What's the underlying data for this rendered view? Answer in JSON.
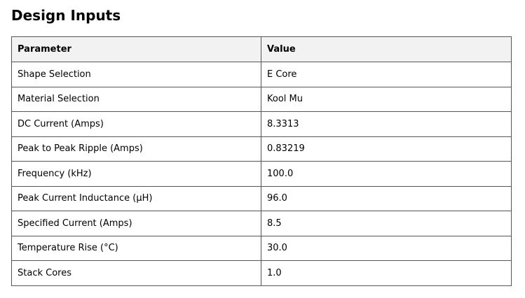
{
  "title": "Design Inputs",
  "table": {
    "headers": [
      "Parameter",
      "Value"
    ],
    "rows": [
      [
        "Shape Selection",
        "E Core"
      ],
      [
        "Material Selection",
        "Kool Mu"
      ],
      [
        "DC Current (Amps)",
        "8.3313"
      ],
      [
        "Peak to Peak Ripple (Amps)",
        "0.83219"
      ],
      [
        "Frequency (kHz)",
        "100.0"
      ],
      [
        "Peak Current Inductance (µH)",
        "96.0"
      ],
      [
        "Specified Current (Amps)",
        "8.5"
      ],
      [
        "Temperature Rise (°C)",
        "30.0"
      ],
      [
        "Stack Cores",
        "1.0"
      ]
    ]
  }
}
